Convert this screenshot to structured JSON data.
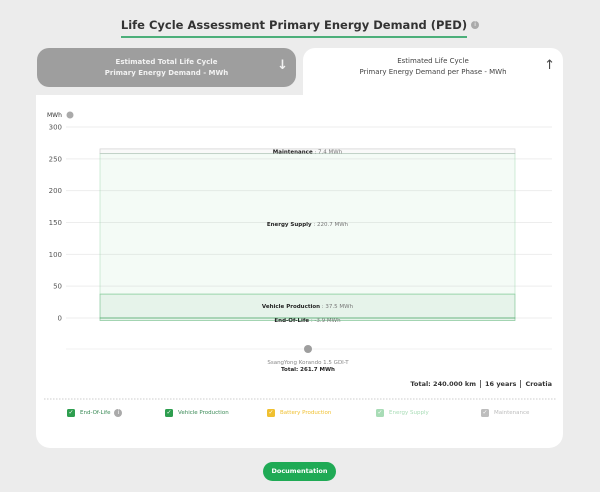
{
  "header": {
    "title": "Life Cycle Assessment Primary Energy Demand (PED)"
  },
  "tabs": [
    {
      "line1": "Estimated Total Life Cycle",
      "line2": "Primary Energy Demand - MWh",
      "icon": "arrow-down-icon",
      "active": false
    },
    {
      "line1": "Estimated Life Cycle",
      "line2": "Primary Energy Demand per Phase - MWh",
      "icon": "arrow-up-icon",
      "active": true
    }
  ],
  "chart_data": {
    "type": "bar",
    "stacked": true,
    "ylabel": "MWh",
    "ylim": [
      -10,
      300
    ],
    "yticks": [
      0,
      50,
      100,
      150,
      200,
      250,
      300
    ],
    "grid": true,
    "categories": [
      "SsangYong Korando 1.5 GDI-T"
    ],
    "category_total": "Total: 261.7 MWh",
    "unit": "MWh",
    "series": [
      {
        "name": "End-Of-Life",
        "values": [
          -3.9
        ],
        "color": "#2e9e4f"
      },
      {
        "name": "Vehicle Production",
        "values": [
          37.5
        ],
        "color": "#2e9e4f"
      },
      {
        "name": "Energy Supply",
        "values": [
          220.7
        ],
        "color": "#8fd4a3"
      },
      {
        "name": "Maintenance",
        "values": [
          7.4
        ],
        "color": "#b0b0b0"
      }
    ]
  },
  "summary": {
    "distance": "Total: 240.000 km",
    "years": "16 years",
    "country": "Croatia"
  },
  "legend": [
    {
      "label": "End-Of-Life",
      "color": "#2e9e4f",
      "info": true
    },
    {
      "label": "Vehicle Production",
      "color": "#2e9e4f"
    },
    {
      "label": "Battery Production",
      "color": "#f0c030"
    },
    {
      "label": "Energy Supply",
      "color": "#a8dcb6"
    },
    {
      "label": "Maintenance",
      "color": "#bdbdbd"
    }
  ],
  "documentation_label": "Documentation"
}
